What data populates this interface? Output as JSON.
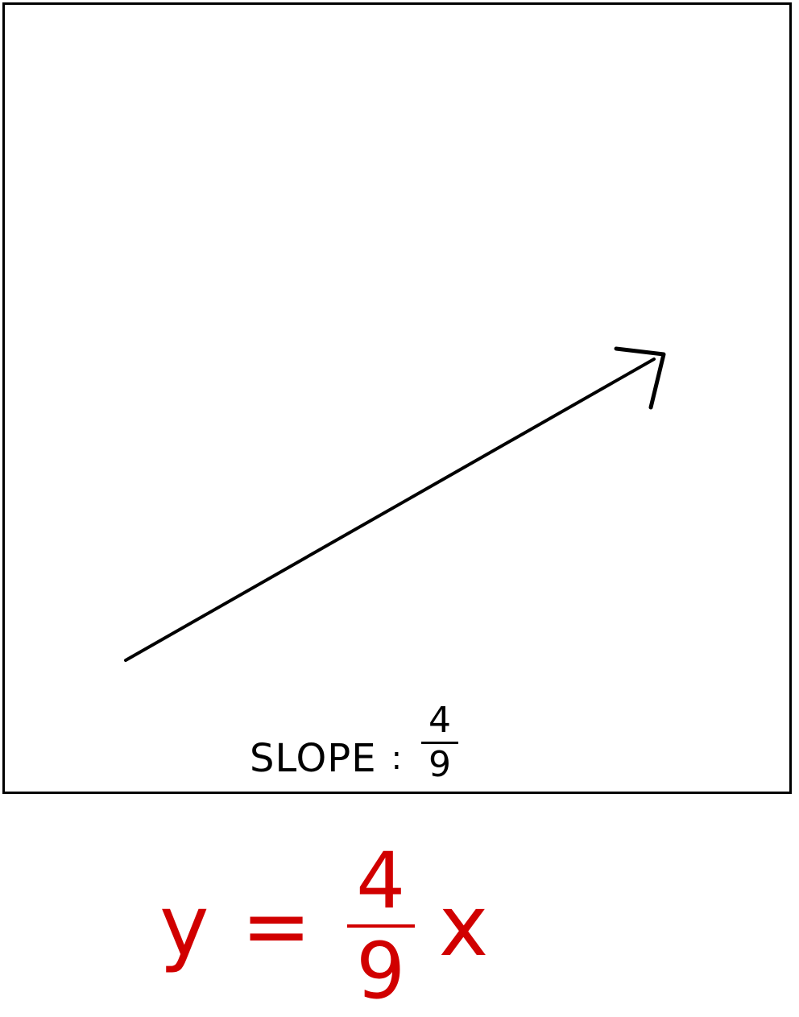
{
  "diagram": {
    "slope_label": "SLOPE",
    "slope_separator": ":",
    "slope_numerator": "4",
    "slope_denominator": "9"
  },
  "equation": {
    "lhs": "y",
    "equals": "=",
    "numerator": "4",
    "denominator": "9",
    "variable": "x"
  },
  "colors": {
    "ink": "#000000",
    "equation": "#d10000"
  }
}
